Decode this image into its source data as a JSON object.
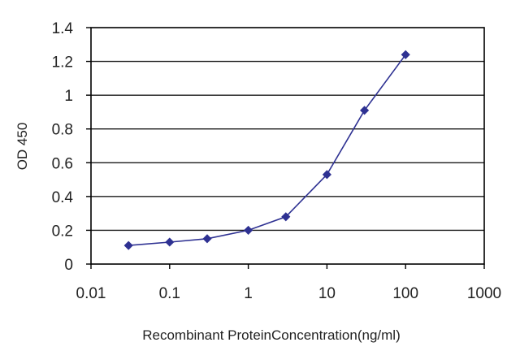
{
  "chart_data": {
    "type": "line",
    "title": "",
    "xlabel": "Recombinant ProteinConcentration(ng/ml)",
    "ylabel": "OD 450",
    "x_scale": "log",
    "xlim": [
      0.01,
      1000
    ],
    "ylim": [
      0,
      1.4
    ],
    "x_ticks": [
      "0.01",
      "0.1",
      "1",
      "10",
      "100",
      "1000"
    ],
    "y_ticks": [
      "0",
      "0.2",
      "0.4",
      "0.6",
      "0.8",
      "1",
      "1.2",
      "1.4"
    ],
    "grid": true,
    "line_color": "#2e3192",
    "series": [
      {
        "x": [
          0.03,
          0.1,
          0.3,
          1,
          3,
          10,
          30,
          100
        ],
        "y": [
          0.11,
          0.13,
          0.15,
          0.2,
          0.28,
          0.53,
          0.91,
          1.24
        ]
      }
    ]
  }
}
